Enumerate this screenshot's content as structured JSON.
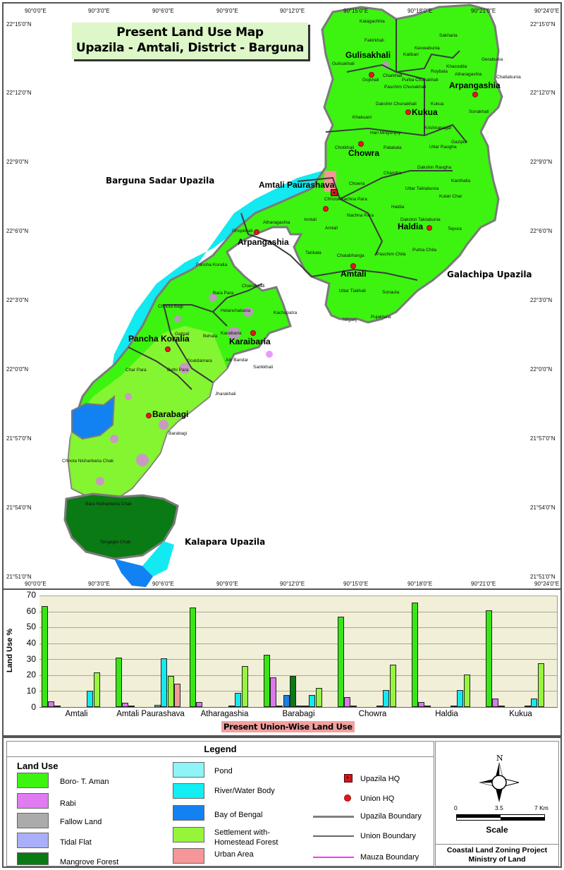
{
  "title": {
    "line1": "Present Land Use Map",
    "line2": "Upazila - Amtali, District - Barguna"
  },
  "map": {
    "longitude_ticks": [
      "90°0'0\"E",
      "90°3'0\"E",
      "90°6'0\"E",
      "90°9'0\"E",
      "90°12'0\"E",
      "90°15'0\"E",
      "90°18'0\"E",
      "90°21'0\"E",
      "90°24'0\"E"
    ],
    "latitude_ticks": [
      "22°15'0\"N",
      "22°12'0\"N",
      "22°9'0\"N",
      "22°6'0\"N",
      "22°3'0\"N",
      "22°0'0\"N",
      "21°57'0\"N",
      "21°54'0\"N",
      "21°51'0\"N"
    ],
    "neighbors": {
      "barguna_sadar": "Barguna Sadar Upazila",
      "galachipa": "Galachipa Upazila",
      "kalapara": "Kalapara Upazila"
    },
    "unions": {
      "gulisakhali": "Gulisakhali",
      "arpangashia_ne": "Arpangashia",
      "kukua": "Kukua",
      "chowra": "Chowra",
      "amtali_paurashava": "Amtali Paurashava",
      "arpangashia_w": "Arpangashia",
      "haldia": "Haldia",
      "amtali": "Amtali",
      "pancha_koralia": "Pancha Koralia",
      "karaibaria": "Karaibaria",
      "barabagi": "Barabagi"
    },
    "mauzas": {
      "kalagachhia": "Kalagachhia",
      "fakirkhali": "Fakirkhali",
      "kalibari": "Kalibari",
      "sakharia": "Sakharia",
      "keowabunia": "Keowabunia",
      "gerabunia": "Gerabunia",
      "gulisakhali": "Gulisakhali",
      "khacodda": "Khacodda",
      "roybala": "Roybala",
      "atharagashia_ne": "Atharagashia",
      "chaltabunia": "Chaltabunia",
      "charkhali": "Charkhali",
      "gojkhali": "Gojkhali",
      "purba_chunakhali": "Purba Chunakhali",
      "paschim_chunakhali": "Paschim Chunakhali",
      "dakshin_chunakhali": "Dakshin Chunakhali",
      "kukua": "Kukua",
      "sonakhali": "Sonakhali",
      "khakuani": "Khakuani",
      "krishnanagar": "Krishnanagar",
      "hari_mrityunjoy": "Hari Mrityunjoy",
      "gazipur": "Gazipur",
      "chotkhali": "Chotkhali",
      "patakata": "Patakata",
      "uttar_raogha": "Uttar Raogha",
      "dakshin_raogha": "Dakshin Raogha",
      "chandra": "Chandra",
      "kanthalia": "Kanthalia",
      "chowra": "Chowra",
      "uttar_taktabunia": "Uttar Taktabunia",
      "kulair_char": "Kulair Char",
      "chhota_nachna_para": "Chhota Nachna Para",
      "haldia": "Haldia",
      "atharagashia_w": "Atharagashia",
      "nachna_para": "Nachna Para",
      "dakshin_taktabunia": "Dakshin Taktabunia",
      "amtali_1": "Amtali",
      "ghopkhali": "Ghopkhali",
      "tepura": "Tepura",
      "amtali_2": "Amtali",
      "tarikata": "Tarikata",
      "chalabhanga": "Chalabhanga",
      "paschim_chila": "Paschim Chila",
      "purba_chila": "Purba Chila",
      "pancha_koralia": "Pancha Koralia",
      "chandkhali": "Chandkhali",
      "bara_para": "Bara Para",
      "uttar_tiakhali": "Uttar Tiakhali",
      "sonauta": "Sonauta",
      "chhota_bagi": "Chhota Bagi",
      "helanchabaria": "Helanchabaria",
      "kachupatra": "Kachupatra",
      "nilganj": "Nilganj",
      "pujakhola": "Pujakhola",
      "gabtali": "Gabtali",
      "behala": "Behala",
      "karaibaria": "Karaibaria",
      "goaldamara": "Goaldamara",
      "alir_bandar": "Alir Bandar",
      "char_para": "Char Para",
      "bethi_para": "Bethi Para",
      "sarikkhali": "Sarikkhali",
      "jharakhali": "Jharakhali",
      "barabagi": "Barabagi",
      "chhota_nisharbaria_chak": "Chhota Nisharbaria Chak",
      "bara_nisharbaria_chak": "Bara Nisharbaria Chak",
      "tengagiri_chak": "Tengagiri Chak"
    }
  },
  "chart_data": {
    "type": "bar",
    "title": "",
    "xlabel": "Present Union-Wise Land Use",
    "ylabel": "Land Use %",
    "ylim": [
      0,
      70
    ],
    "yticks": [
      0,
      10,
      20,
      30,
      40,
      50,
      60,
      70
    ],
    "grid": true,
    "categories": [
      "Amtali",
      "Amtali Paurashava",
      "Atharagashia",
      "Barabagi",
      "Chowra",
      "Haldia",
      "Kukua"
    ],
    "series": [
      {
        "name": "Boro- T. Aman",
        "color": "#39e614",
        "values": [
          63.5,
          31,
          62.5,
          33,
          56.5,
          65.5,
          60.5
        ]
      },
      {
        "name": "Rabi",
        "color": "#dd77ee",
        "values": [
          3.5,
          2.5,
          3,
          18.5,
          6,
          3,
          5.5
        ]
      },
      {
        "name": "Fallow Land",
        "color": "#a9a9a9",
        "values": [
          1,
          0.3,
          0,
          0.8,
          0.5,
          0.5,
          0.5
        ]
      },
      {
        "name": "Bay of Bengal",
        "color": "#1a7fe8",
        "values": [
          0,
          0,
          0,
          7.5,
          0,
          0,
          0
        ]
      },
      {
        "name": "Mangrove Forest",
        "color": "#0a7a14",
        "values": [
          0,
          0,
          0,
          19.5,
          0,
          0,
          0
        ]
      },
      {
        "name": "Tidal Flat",
        "color": "#a7acf2",
        "values": [
          0,
          0,
          0,
          1,
          0,
          0,
          0
        ]
      },
      {
        "name": "Pond",
        "color": "#8ff2f5",
        "values": [
          0,
          1.5,
          0.3,
          0.3,
          0.3,
          0.3,
          0.3
        ]
      },
      {
        "name": "River/Water Body",
        "color": "#12e9f0",
        "values": [
          10,
          30.5,
          9,
          7.5,
          10.5,
          10.5,
          5.5
        ]
      },
      {
        "name": "Settlement with-Homestead Forest",
        "color": "#97f53f",
        "values": [
          21.5,
          19.5,
          25.5,
          12,
          26.5,
          20.5,
          27.5
        ]
      },
      {
        "name": "Urban Area",
        "color": "#f39a98",
        "values": [
          0,
          14.5,
          0,
          0,
          0,
          0,
          0
        ]
      }
    ]
  },
  "legend": {
    "title": "Legend",
    "land_use_title": "Land Use",
    "land_use": [
      {
        "label": "Boro- T. Aman",
        "color": "#3cf40f"
      },
      {
        "label": "Rabi",
        "color": "#e07bf2"
      },
      {
        "label": "Fallow Land",
        "color": "#ababab"
      },
      {
        "label": "Tidal Flat",
        "color": "#a9affa"
      },
      {
        "label": "Mangrove Forest",
        "color": "#0a7a14"
      },
      {
        "label": "Pond",
        "color": "#8ef4f7"
      },
      {
        "label": "River/Water Body",
        "color": "#12eef4"
      },
      {
        "label": "Bay of Bengal",
        "color": "#1282f2"
      },
      {
        "label": "Settlement with-",
        "label2": "Homestead Forest",
        "color": "#96f53a"
      },
      {
        "label": "Urban Area",
        "color": "#f59698"
      }
    ],
    "symbols": [
      {
        "label": "Upazila HQ"
      },
      {
        "label": "Union HQ"
      },
      {
        "label": "Upazila Boundary",
        "color": "#808080"
      },
      {
        "label": "Union Boundary",
        "color": "#666666"
      },
      {
        "label": "Mauza Boundary",
        "color": "#ff33ff"
      }
    ],
    "north_label": "N",
    "scale": {
      "ticks": [
        "0",
        "3.5",
        "7 Km"
      ],
      "title": "Scale"
    },
    "credit": {
      "line1": "Coastal Land Zoning Project",
      "line2": "Ministry of Land"
    }
  }
}
